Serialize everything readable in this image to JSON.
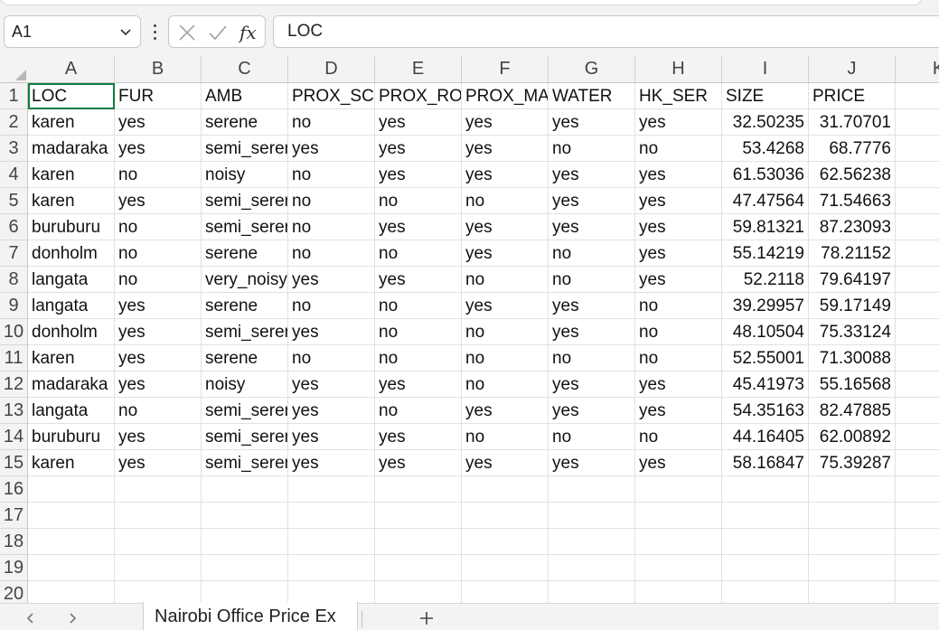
{
  "name_box": {
    "value": "A1"
  },
  "formula_bar": {
    "value": "LOC",
    "fx_label": "fx"
  },
  "columns": [
    "A",
    "B",
    "C",
    "D",
    "E",
    "F",
    "G",
    "H",
    "I",
    "J",
    "K"
  ],
  "row_numbers": [
    "1",
    "2",
    "3",
    "4",
    "5",
    "6",
    "7",
    "8",
    "9",
    "10",
    "11",
    "12",
    "13",
    "14",
    "15",
    "16",
    "17",
    "18",
    "19",
    "20"
  ],
  "rows": [
    [
      "LOC",
      "FUR",
      "AMB",
      "PROX_SCH",
      "PROX_ROAD",
      "PROX_MALL",
      "WATER",
      "HK_SER",
      "SIZE",
      "PRICE"
    ],
    [
      "karen",
      "yes",
      "serene",
      "no",
      "yes",
      "yes",
      "yes",
      "yes",
      "32.50235",
      "31.70701"
    ],
    [
      "madaraka",
      "yes",
      "semi_serene",
      "yes",
      "yes",
      "yes",
      "no",
      "no",
      "53.4268",
      "68.7776"
    ],
    [
      "karen",
      "no",
      "noisy",
      "no",
      "yes",
      "yes",
      "yes",
      "yes",
      "61.53036",
      "62.56238"
    ],
    [
      "karen",
      "yes",
      "semi_serene",
      "no",
      "no",
      "no",
      "yes",
      "yes",
      "47.47564",
      "71.54663"
    ],
    [
      "buruburu",
      "no",
      "semi_serene",
      "no",
      "yes",
      "yes",
      "yes",
      "yes",
      "59.81321",
      "87.23093"
    ],
    [
      "donholm",
      "no",
      "serene",
      "no",
      "no",
      "yes",
      "no",
      "yes",
      "55.14219",
      "78.21152"
    ],
    [
      "langata",
      "no",
      "very_noisy",
      "yes",
      "yes",
      "no",
      "no",
      "yes",
      "52.2118",
      "79.64197"
    ],
    [
      "langata",
      "yes",
      "serene",
      "no",
      "no",
      "yes",
      "yes",
      "no",
      "39.29957",
      "59.17149"
    ],
    [
      "donholm",
      "yes",
      "semi_serene",
      "yes",
      "no",
      "no",
      "yes",
      "no",
      "48.10504",
      "75.33124"
    ],
    [
      "karen",
      "yes",
      "serene",
      "no",
      "no",
      "no",
      "no",
      "no",
      "52.55001",
      "71.30088"
    ],
    [
      "madaraka",
      "yes",
      "noisy",
      "yes",
      "yes",
      "no",
      "yes",
      "yes",
      "45.41973",
      "55.16568"
    ],
    [
      "langata",
      "no",
      "semi_serene",
      "yes",
      "no",
      "yes",
      "yes",
      "yes",
      "54.35163",
      "82.47885"
    ],
    [
      "buruburu",
      "yes",
      "semi_serene",
      "yes",
      "yes",
      "no",
      "no",
      "no",
      "44.16405",
      "62.00892"
    ],
    [
      "karen",
      "yes",
      "semi_serene",
      "yes",
      "yes",
      "yes",
      "yes",
      "yes",
      "58.16847",
      "75.39287"
    ]
  ],
  "sheet_tabs": [
    "Nairobi Office Price Ex"
  ]
}
